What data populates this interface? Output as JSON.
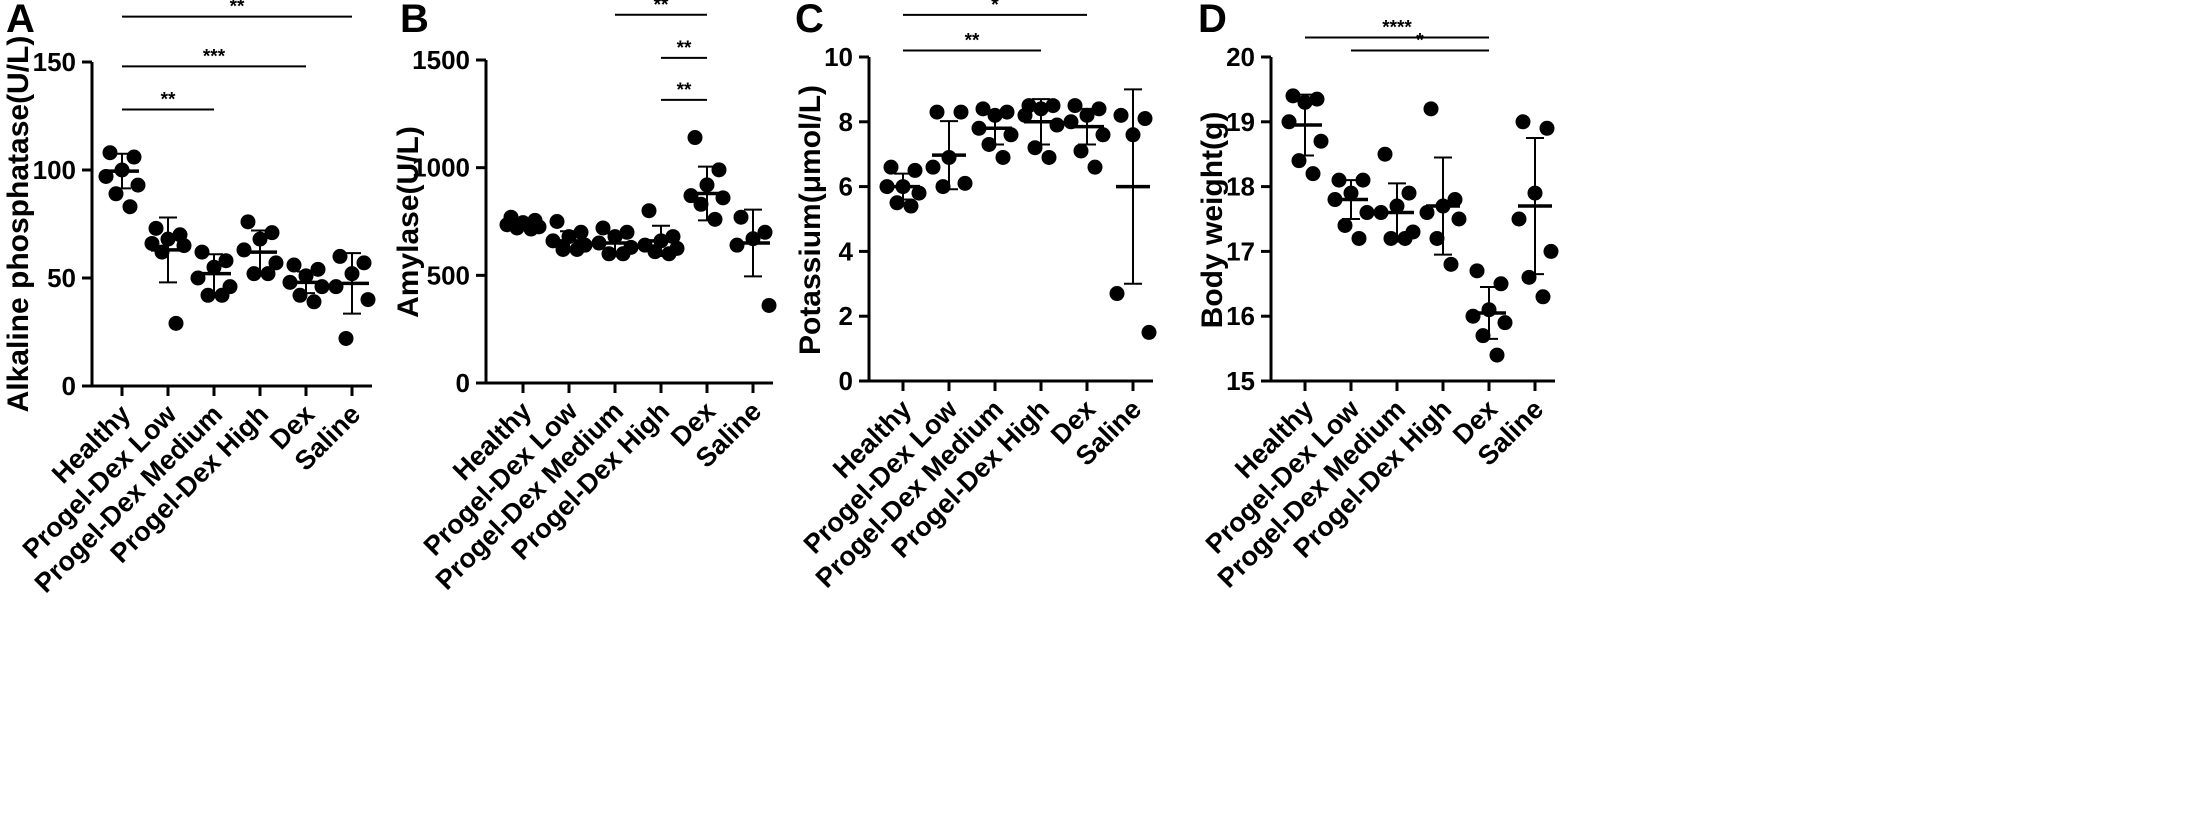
{
  "categories": [
    "Healthy",
    "Progel-Dex Low",
    "Progel-Dex Medium",
    "Progel-Dex High",
    "Dex",
    "Saline"
  ],
  "chart_data": [
    {
      "panel": "A",
      "type": "scatter",
      "ylabel": "Alkaline phosphatase(U/L)",
      "ylim": [
        0,
        150
      ],
      "yticks": [
        "0",
        "50",
        "100",
        "150"
      ],
      "categories": [
        "Healthy",
        "Progel-Dex Low",
        "Progel-Dex Medium",
        "Progel-Dex High",
        "Dex",
        "Saline"
      ],
      "groups": [
        {
          "points": [
            108,
            106,
            100,
            97,
            93,
            89,
            83
          ],
          "mean": 99.5,
          "sd": 8
        },
        {
          "points": [
            73,
            70,
            68,
            66,
            65,
            62,
            29
          ],
          "mean": 63,
          "sd": 15
        },
        {
          "points": [
            62,
            58,
            55,
            50,
            46,
            42,
            42
          ],
          "mean": 52,
          "sd": 9
        },
        {
          "points": [
            76,
            71,
            68,
            63,
            57,
            52,
            52
          ],
          "mean": 62,
          "sd": 10
        },
        {
          "points": [
            56,
            54,
            51,
            48,
            46,
            42,
            39
          ],
          "mean": 48,
          "sd": 5
        },
        {
          "points": [
            60,
            57,
            52,
            46,
            40,
            22
          ],
          "mean": 47.5,
          "sd": 14
        }
      ],
      "significance": [
        {
          "from": 0,
          "to": 5,
          "label": "**",
          "y": 171
        },
        {
          "from": 0,
          "to": 4,
          "label": "***",
          "y": 148
        },
        {
          "from": 0,
          "to": 2,
          "label": "**",
          "y": 128
        }
      ]
    },
    {
      "panel": "B",
      "type": "scatter",
      "ylabel": "Amylase(U/L)",
      "ylim": [
        0,
        1500
      ],
      "yticks": [
        "0",
        "500",
        "1000",
        "1500"
      ],
      "categories": [
        "Healthy",
        "Progel-Dex Low",
        "Progel-Dex Medium",
        "Progel-Dex High",
        "Dex",
        "Saline"
      ],
      "groups": [
        {
          "points": [
            770,
            755,
            745,
            735,
            725,
            720,
            715
          ],
          "mean": 740,
          "sd": 20
        },
        {
          "points": [
            750,
            700,
            680,
            660,
            640,
            620,
            620
          ],
          "mean": 660,
          "sd": 45
        },
        {
          "points": [
            720,
            700,
            680,
            650,
            630,
            600,
            600
          ],
          "mean": 650,
          "sd": 45
        },
        {
          "points": [
            800,
            680,
            660,
            640,
            625,
            610,
            600
          ],
          "mean": 660,
          "sd": 70
        },
        {
          "points": [
            1140,
            990,
            920,
            870,
            860,
            830,
            760
          ],
          "mean": 880,
          "sd": 125
        },
        {
          "points": [
            770,
            700,
            670,
            640,
            360
          ],
          "mean": 650,
          "sd": 155
        }
      ],
      "significance": [
        {
          "from": 2,
          "to": 4,
          "label": "**",
          "y": 1710
        },
        {
          "from": 3,
          "to": 4,
          "label": "**",
          "y": 1510
        },
        {
          "from": 4,
          "to": 4,
          "label": "**",
          "y": 1315
        }
      ]
    },
    {
      "panel": "C",
      "type": "scatter",
      "ylabel": "Potassium(μmol/L)",
      "ylim": [
        0,
        10
      ],
      "yticks": [
        "0",
        "2",
        "4",
        "6",
        "8",
        "10"
      ],
      "categories": [
        "Healthy",
        "Progel-Dex Low",
        "Progel-Dex Medium",
        "Progel-Dex High",
        "Dex",
        "Saline"
      ],
      "groups": [
        {
          "points": [
            6.6,
            6.5,
            6.0,
            6.0,
            5.8,
            5.5,
            5.4
          ],
          "mean": 6.0,
          "sd": 0.4
        },
        {
          "points": [
            8.3,
            8.3,
            6.9,
            6.6,
            6.1,
            6.0
          ],
          "mean": 6.97,
          "sd": 1.05
        },
        {
          "points": [
            8.4,
            8.3,
            8.2,
            7.8,
            7.6,
            7.3,
            6.9
          ],
          "mean": 7.8,
          "sd": 0.5
        },
        {
          "points": [
            8.5,
            8.5,
            8.4,
            8.2,
            7.9,
            7.2,
            6.9
          ],
          "mean": 8.0,
          "sd": 0.7
        },
        {
          "points": [
            8.5,
            8.4,
            8.2,
            8.0,
            7.6,
            7.1,
            6.6
          ],
          "mean": 7.85,
          "sd": 0.55
        },
        {
          "points": [
            8.2,
            8.1,
            7.6,
            2.7,
            1.5
          ],
          "mean": 6.0,
          "sd": 3.0
        }
      ],
      "significance": [
        {
          "from": 0,
          "to": 4,
          "label": "*",
          "y": 11.3
        },
        {
          "from": 0,
          "to": 3,
          "label": "**",
          "y": 10.2
        }
      ]
    },
    {
      "panel": "D",
      "type": "scatter",
      "ylabel": "Body weight(g)",
      "ylim": [
        15,
        20
      ],
      "yticks": [
        "15",
        "16",
        "17",
        "18",
        "19",
        "20"
      ],
      "categories": [
        "Healthy",
        "Progel-Dex Low",
        "Progel-Dex Medium",
        "Progel-Dex High",
        "Dex",
        "Saline"
      ],
      "groups": [
        {
          "points": [
            19.4,
            19.35,
            19.3,
            19.0,
            18.7,
            18.4,
            18.2
          ],
          "mean": 18.95,
          "sd": 0.47
        },
        {
          "points": [
            18.1,
            18.1,
            17.9,
            17.8,
            17.6,
            17.4,
            17.2
          ],
          "mean": 17.8,
          "sd": 0.3
        },
        {
          "points": [
            18.5,
            17.9,
            17.7,
            17.6,
            17.3,
            17.2,
            17.2
          ],
          "mean": 17.6,
          "sd": 0.45
        },
        {
          "points": [
            19.2,
            17.8,
            17.7,
            17.6,
            17.5,
            17.2,
            16.8
          ],
          "mean": 17.7,
          "sd": 0.75
        },
        {
          "points": [
            16.7,
            16.5,
            16.1,
            16.0,
            15.9,
            15.7,
            15.4
          ],
          "mean": 16.05,
          "sd": 0.4
        },
        {
          "points": [
            19.0,
            18.9,
            17.9,
            17.5,
            17.0,
            16.6,
            16.3
          ],
          "mean": 17.7,
          "sd": 1.05
        }
      ],
      "significance": [
        {
          "from": 0,
          "to": 4,
          "label": "****",
          "y": 20.3
        },
        {
          "from": 1,
          "to": 4,
          "label": "*",
          "y": 20.1
        }
      ]
    }
  ]
}
